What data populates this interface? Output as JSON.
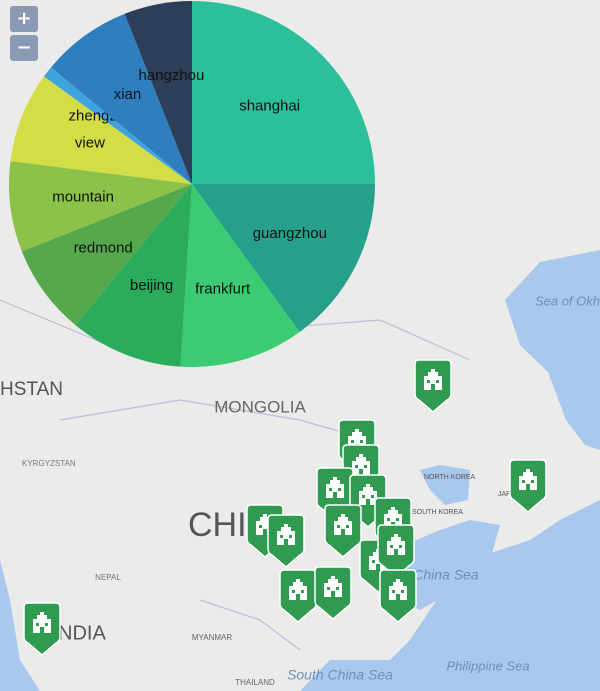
{
  "chart_data": {
    "type": "pie",
    "categories": [
      "shanghai",
      "guangzhou",
      "frankfurt",
      "beijing",
      "redmond",
      "mountain",
      "view",
      "zhengzhou",
      "xian",
      "hangzhou"
    ],
    "values": [
      25,
      15,
      11,
      10,
      8,
      8,
      8,
      1,
      8,
      6
    ],
    "colors": [
      "#2bbf9a",
      "#26a08a",
      "#3bcb72",
      "#2aac5c",
      "#55a84c",
      "#8cc24a",
      "#d3dd45",
      "#3fa3de",
      "#2f7fc0",
      "#2d3f58"
    ]
  },
  "map": {
    "zoom_in": "+",
    "zoom_out": "−",
    "labels": [
      "Sea of Okh",
      "HSTAN",
      "MONGOLIA",
      "KYRGYZSTAN",
      "NORTH KOREA",
      "SOUTH KOREA",
      "JAPAN",
      "CHI",
      "East China Sea",
      "NEPAL",
      "NDIA",
      "MYANMAR",
      "THAILAND",
      "South China Sea",
      "Philippine Sea"
    ]
  }
}
